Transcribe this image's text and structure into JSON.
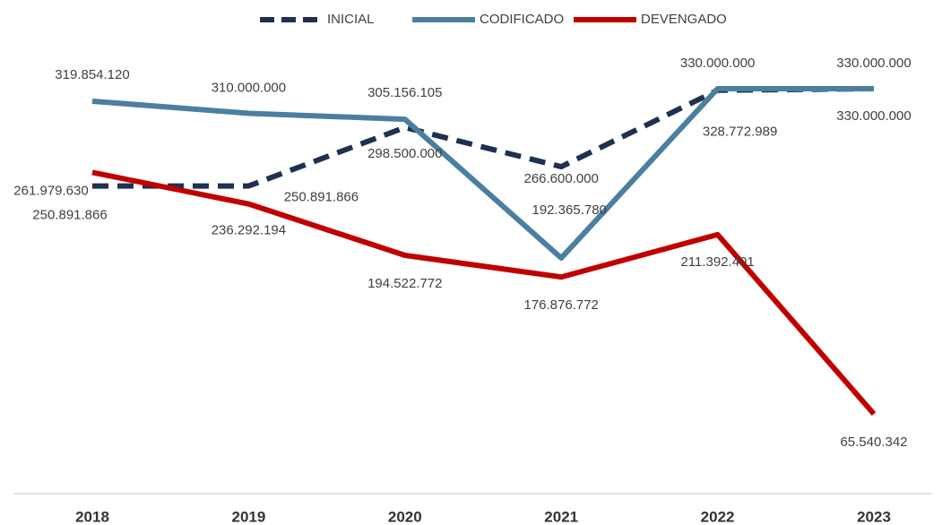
{
  "chart_data": {
    "type": "line",
    "categories": [
      "2018",
      "2019",
      "2020",
      "2021",
      "2022",
      "2023"
    ],
    "ylim": [
      0,
      380000000
    ],
    "series": [
      {
        "name": "INICIAL",
        "color": "#1f3050",
        "dashed": true,
        "values": [
          250891866,
          250891866,
          298500000,
          266600000,
          328772989,
          330000000
        ],
        "value_labels": [
          "250.891.866",
          "250.891.866",
          "298.500.000",
          "266.600.000",
          "328.772.989",
          "330.000.000"
        ]
      },
      {
        "name": "CODIFICADO",
        "color": "#4a7fa0",
        "dashed": false,
        "values": [
          319854120,
          310000000,
          305156105,
          192365780,
          330000000,
          330000000
        ],
        "value_labels": [
          "319.854.120",
          "310.000.000",
          "305.156.105",
          "192.365.780",
          "330.000.000",
          "330.000.000"
        ]
      },
      {
        "name": "DEVENGADO",
        "color": "#c00000",
        "dashed": false,
        "values": [
          261979630,
          236292194,
          194522772,
          176876772,
          211392401,
          65540342
        ],
        "value_labels": [
          "261.979.630",
          "236.292.194",
          "194.522.772",
          "176.876.772",
          "211.392.401",
          "65.540.342"
        ]
      }
    ],
    "legend": "top"
  }
}
